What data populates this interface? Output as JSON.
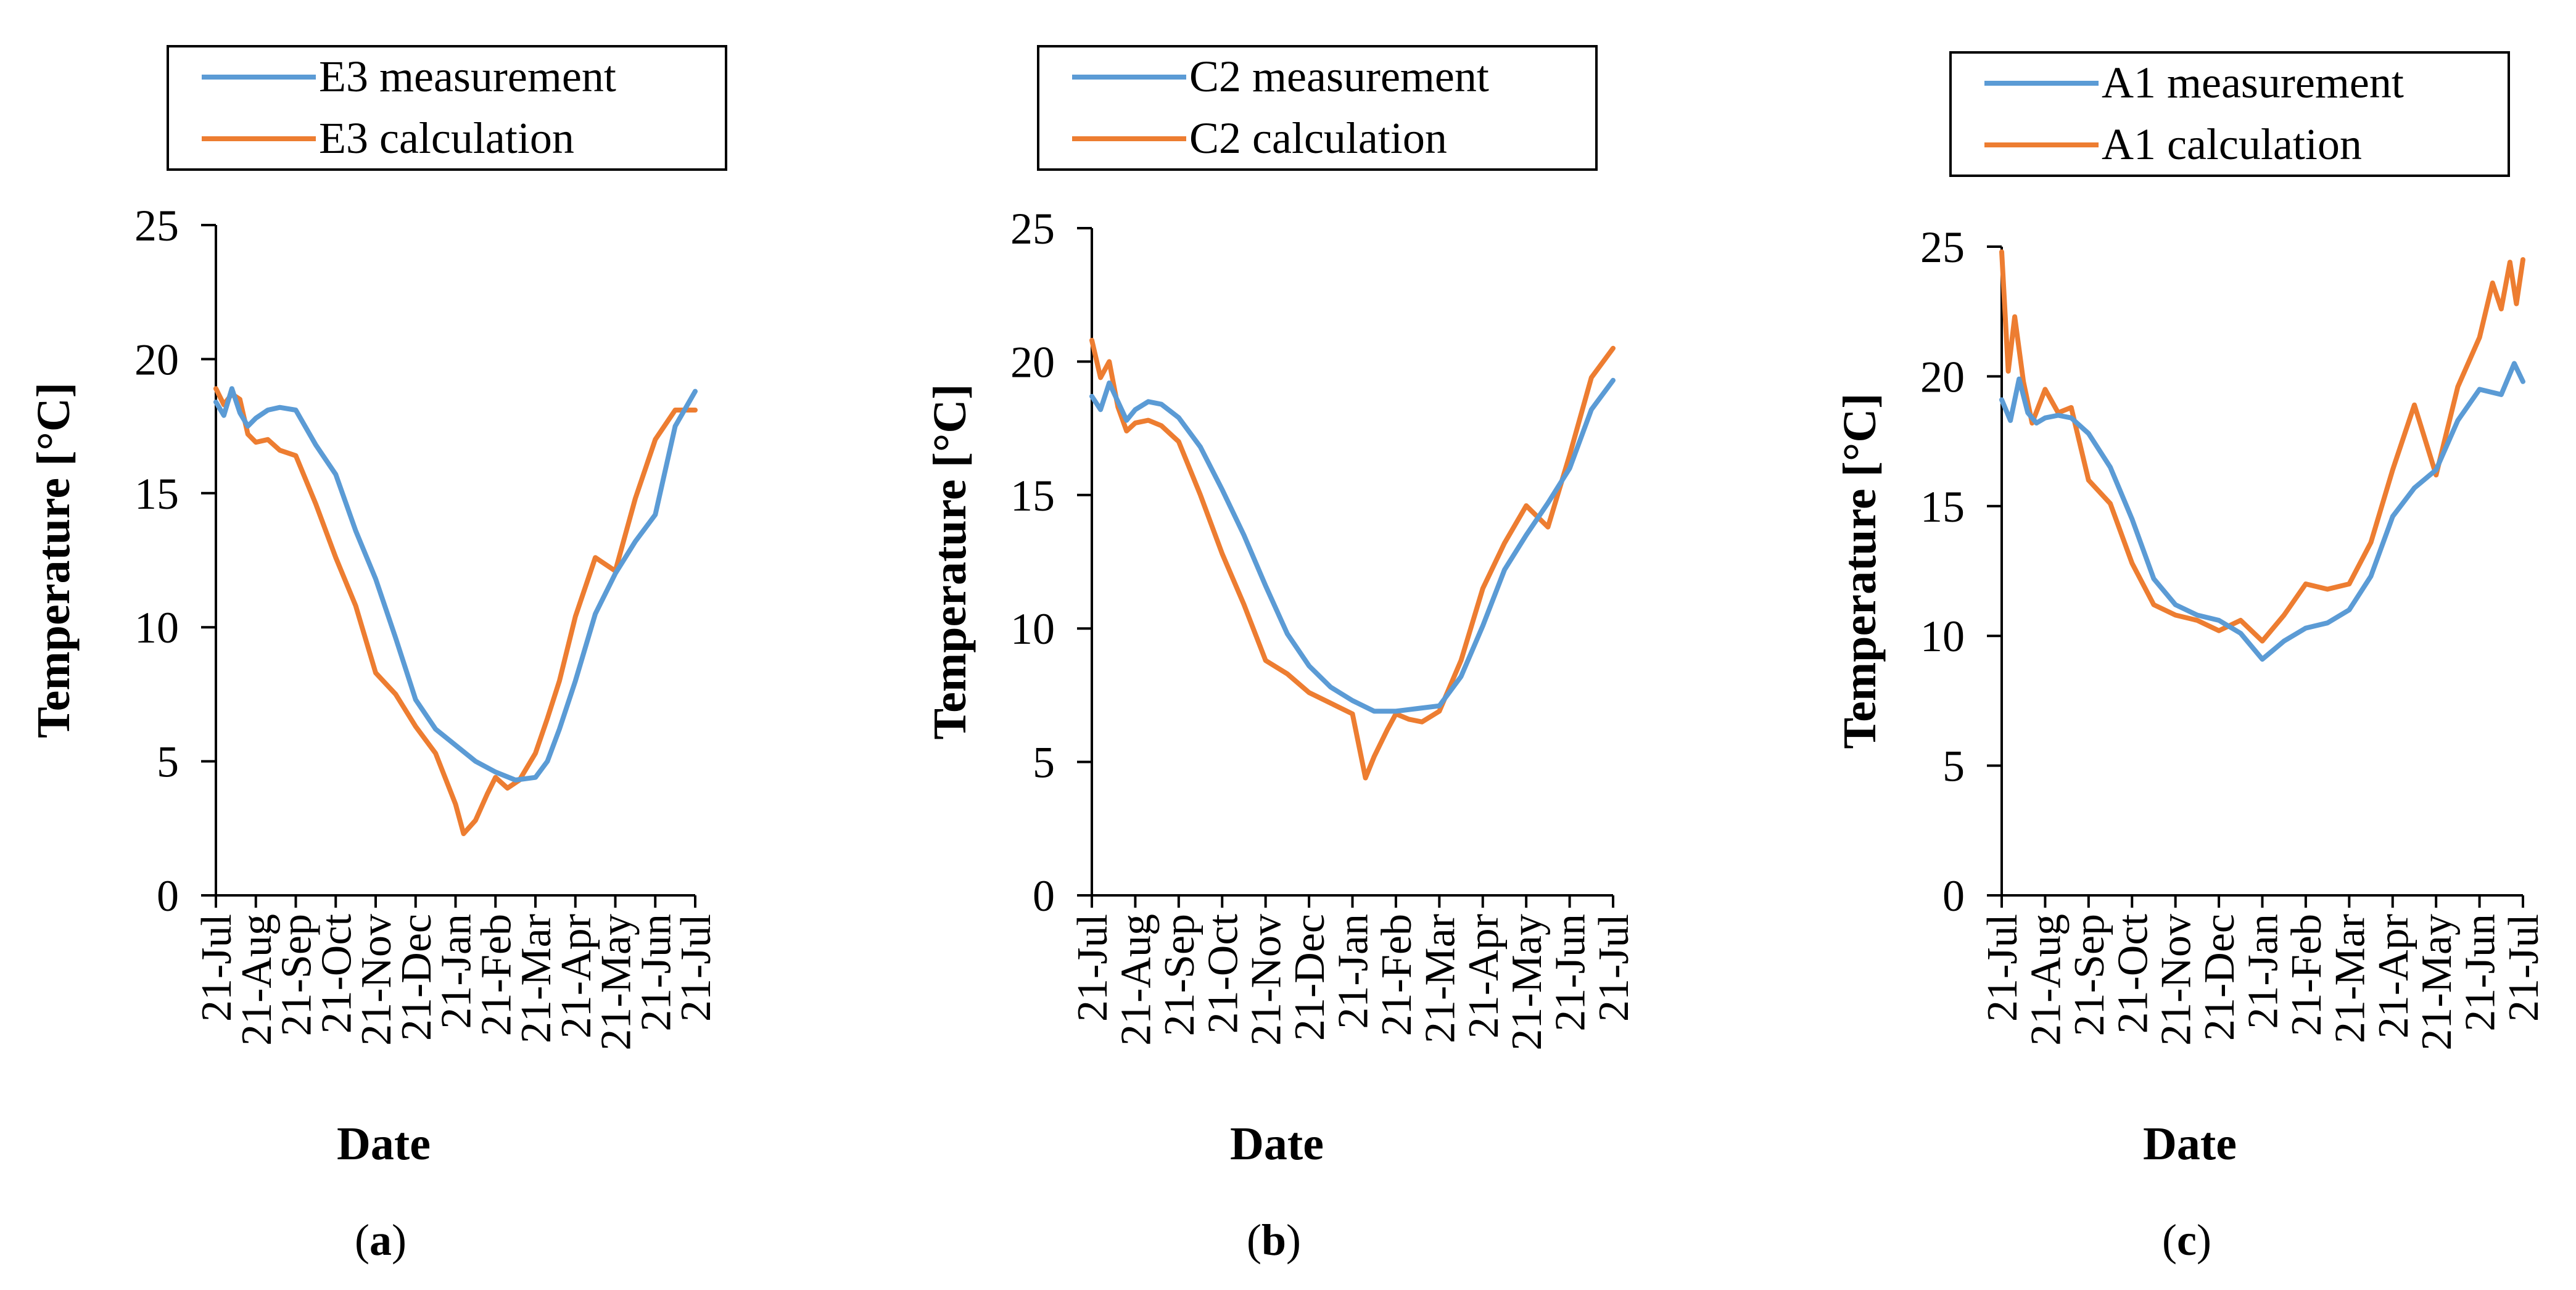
{
  "figure": {
    "panel_labels": [
      "a",
      "b",
      "c"
    ]
  },
  "chart_data": [
    {
      "type": "line",
      "panel_label": "a",
      "xlabel": "Date",
      "ylabel": "Temperature [°C]",
      "ylim": [
        0,
        25
      ],
      "yticks": [
        0,
        5,
        10,
        15,
        20,
        25
      ],
      "x_tick_labels": [
        "21-Jul",
        "21-Aug",
        "21-Sep",
        "21-Oct",
        "21-Nov",
        "21-Dec",
        "21-Jan",
        "21-Feb",
        "21-Mar",
        "21-Apr",
        "21-May",
        "21-Jun",
        "21-Jul"
      ],
      "legend_position": "top",
      "x_unit": "month index (0 = 21-Jul, 12 = following 21-Jul)",
      "series": [
        {
          "name": "E3 measurement",
          "color": "#5B9BD5",
          "x": [
            0,
            0.2,
            0.4,
            0.6,
            0.8,
            1,
            1.3,
            1.6,
            2,
            2.5,
            3,
            3.5,
            4,
            4.5,
            5,
            5.5,
            6,
            6.5,
            7,
            7.5,
            8,
            8.3,
            8.6,
            9,
            9.5,
            10,
            10.5,
            11,
            11.5,
            12
          ],
          "values": [
            18.4,
            17.9,
            18.9,
            18.0,
            17.5,
            17.8,
            18.1,
            18.2,
            18.1,
            16.8,
            15.7,
            13.6,
            11.8,
            9.6,
            7.3,
            6.2,
            5.6,
            5.0,
            4.6,
            4.3,
            4.4,
            5.0,
            6.2,
            8.0,
            10.5,
            12.0,
            13.2,
            14.2,
            17.5,
            18.8
          ]
        },
        {
          "name": "E3 calculation",
          "color": "#ED7D31",
          "x": [
            0,
            0.2,
            0.4,
            0.6,
            0.8,
            1,
            1.3,
            1.6,
            2,
            2.5,
            3,
            3.5,
            4,
            4.5,
            5,
            5.5,
            6,
            6.2,
            6.5,
            6.8,
            7,
            7.3,
            7.6,
            8,
            8.3,
            8.6,
            9,
            9.5,
            10,
            10.5,
            11,
            11.5,
            12
          ],
          "values": [
            18.9,
            18.3,
            18.7,
            18.5,
            17.2,
            16.9,
            17.0,
            16.6,
            16.4,
            14.6,
            12.6,
            10.8,
            8.3,
            7.5,
            6.3,
            5.3,
            3.4,
            2.3,
            2.8,
            3.8,
            4.4,
            4.0,
            4.3,
            5.3,
            6.6,
            8.0,
            10.4,
            12.6,
            12.1,
            14.8,
            17.0,
            18.1,
            18.1
          ]
        }
      ]
    },
    {
      "type": "line",
      "panel_label": "b",
      "xlabel": "Date",
      "ylabel": "Temperature [°C]",
      "ylim": [
        0,
        25
      ],
      "yticks": [
        0,
        5,
        10,
        15,
        20,
        25
      ],
      "x_tick_labels": [
        "21-Jul",
        "21-Aug",
        "21-Sep",
        "21-Oct",
        "21-Nov",
        "21-Dec",
        "21-Jan",
        "21-Feb",
        "21-Mar",
        "21-Apr",
        "21-May",
        "21-Jun",
        "21-Jul"
      ],
      "legend_position": "top",
      "x_unit": "month index (0 = 21-Jul, 12 = following 21-Jul)",
      "series": [
        {
          "name": "C2 measurement",
          "color": "#5B9BD5",
          "x": [
            0,
            0.2,
            0.4,
            0.6,
            0.8,
            1,
            1.3,
            1.6,
            2,
            2.5,
            3,
            3.5,
            4,
            4.5,
            5,
            5.5,
            6,
            6.5,
            7,
            7.5,
            8,
            8.5,
            9,
            9.5,
            10,
            10.5,
            11,
            11.5,
            12
          ],
          "values": [
            18.7,
            18.2,
            19.2,
            18.5,
            17.8,
            18.2,
            18.5,
            18.4,
            17.9,
            16.8,
            15.2,
            13.5,
            11.6,
            9.8,
            8.6,
            7.8,
            7.3,
            6.9,
            6.9,
            7.0,
            7.1,
            8.2,
            10.1,
            12.2,
            13.5,
            14.7,
            16.0,
            18.2,
            19.3
          ]
        },
        {
          "name": "C2 calculation",
          "color": "#ED7D31",
          "x": [
            0,
            0.2,
            0.4,
            0.6,
            0.8,
            1,
            1.3,
            1.6,
            2,
            2.5,
            3,
            3.5,
            4,
            4.5,
            5,
            5.5,
            6,
            6.3,
            6.5,
            6.8,
            7,
            7.3,
            7.6,
            8,
            8.5,
            9,
            9.5,
            10,
            10.5,
            11,
            11.5,
            12
          ],
          "values": [
            20.8,
            19.4,
            20.0,
            18.3,
            17.4,
            17.7,
            17.8,
            17.6,
            17.0,
            15.0,
            12.8,
            10.9,
            8.8,
            8.3,
            7.6,
            7.2,
            6.8,
            4.4,
            5.2,
            6.2,
            6.8,
            6.6,
            6.5,
            6.9,
            8.8,
            11.5,
            13.2,
            14.6,
            13.8,
            16.5,
            19.4,
            20.5
          ]
        }
      ]
    },
    {
      "type": "line",
      "panel_label": "c",
      "xlabel": "Date",
      "ylabel": "Temperature [°C]",
      "ylim": [
        0,
        25
      ],
      "yticks": [
        0,
        5,
        10,
        15,
        20,
        25
      ],
      "x_tick_labels": [
        "21-Jul",
        "21-Aug",
        "21-Sep",
        "21-Oct",
        "21-Nov",
        "21-Dec",
        "21-Jan",
        "21-Feb",
        "21-Mar",
        "21-Apr",
        "21-May",
        "21-Jun",
        "21-Jul"
      ],
      "legend_position": "top",
      "x_unit": "month index (0 = 21-Jul, 12 = following 21-Jul)",
      "series": [
        {
          "name": "A1 measurement",
          "color": "#5B9BD5",
          "x": [
            0,
            0.2,
            0.4,
            0.6,
            0.8,
            1,
            1.3,
            1.6,
            2,
            2.5,
            3,
            3.5,
            4,
            4.5,
            5,
            5.5,
            6,
            6.5,
            7,
            7.5,
            8,
            8.5,
            9,
            9.5,
            10,
            10.5,
            11,
            11.5,
            11.8,
            12
          ],
          "values": [
            19.1,
            18.3,
            19.9,
            18.6,
            18.2,
            18.4,
            18.5,
            18.4,
            17.8,
            16.5,
            14.5,
            12.2,
            11.2,
            10.8,
            10.6,
            10.1,
            9.1,
            9.8,
            10.3,
            10.5,
            11.0,
            12.3,
            14.6,
            15.7,
            16.4,
            18.3,
            19.5,
            19.3,
            20.5,
            19.8
          ]
        },
        {
          "name": "A1 calculation",
          "color": "#ED7D31",
          "x": [
            0,
            0.15,
            0.3,
            0.5,
            0.7,
            1,
            1.3,
            1.6,
            2,
            2.5,
            3,
            3.5,
            4,
            4.5,
            5,
            5.5,
            6,
            6.5,
            7,
            7.5,
            8,
            8.5,
            9,
            9.5,
            10,
            10.5,
            11,
            11.3,
            11.5,
            11.7,
            11.85,
            12
          ],
          "values": [
            24.8,
            20.2,
            22.3,
            19.8,
            18.2,
            19.5,
            18.6,
            18.8,
            16.0,
            15.1,
            12.8,
            11.2,
            10.8,
            10.6,
            10.2,
            10.6,
            9.8,
            10.8,
            12.0,
            11.8,
            12.0,
            13.6,
            16.4,
            18.9,
            16.2,
            19.6,
            21.5,
            23.6,
            22.6,
            24.4,
            22.8,
            24.5
          ]
        }
      ]
    }
  ]
}
